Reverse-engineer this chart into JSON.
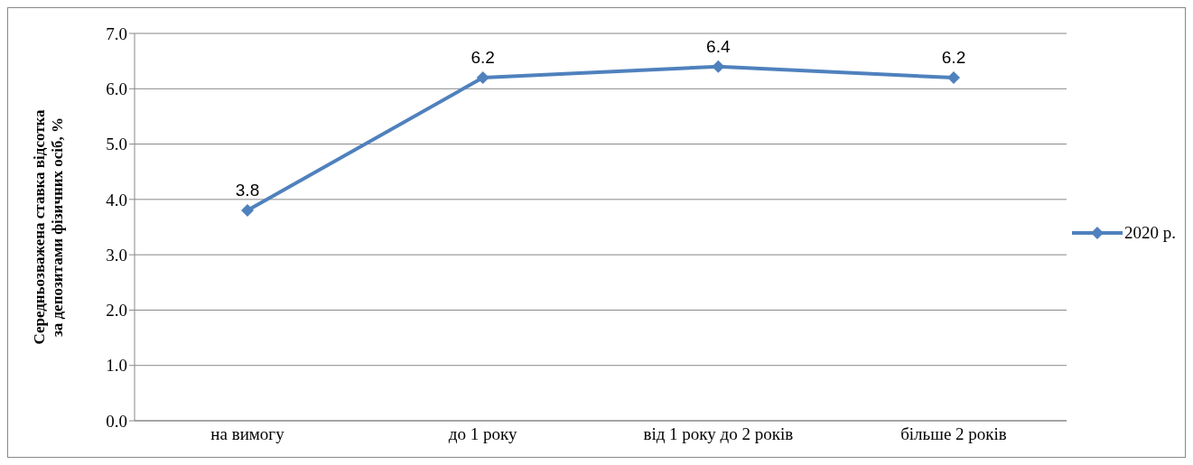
{
  "chart_data": {
    "type": "line",
    "ylabel": "Середньозважена ставка відсотка за депозитами фізичних осіб, %",
    "categories": [
      "на вимогу",
      "до 1 року",
      "від 1 року до 2 років",
      "більше 2 років"
    ],
    "series": [
      {
        "name": "2020 р.",
        "color": "#4f81bd",
        "values": [
          3.8,
          6.2,
          6.4,
          6.2
        ]
      }
    ],
    "ylim": [
      0,
      7
    ],
    "yticks": [
      {
        "value": 0,
        "label": "0.0"
      },
      {
        "value": 1,
        "label": "1.0"
      },
      {
        "value": 2,
        "label": "2.0"
      },
      {
        "value": 3,
        "label": "3.0"
      },
      {
        "value": 4,
        "label": "4.0"
      },
      {
        "value": 5,
        "label": "5.0"
      },
      {
        "value": 6,
        "label": "6.0"
      },
      {
        "value": 7,
        "label": "7.0"
      }
    ],
    "grid": "y",
    "legend": "right",
    "marker": "diamond",
    "line_style": "solid",
    "data_labels": true
  }
}
